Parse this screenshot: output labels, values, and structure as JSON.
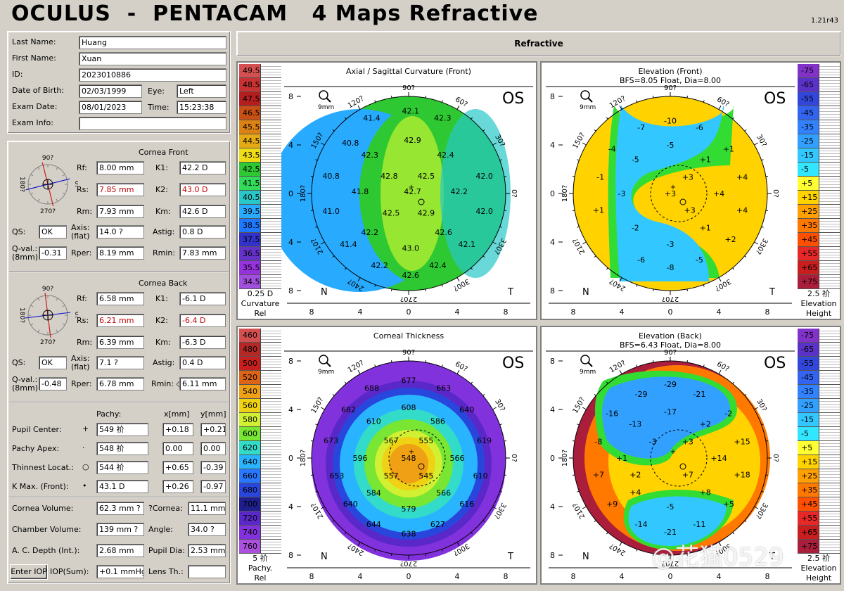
{
  "app": {
    "title": "OCULUS  -  PENTACAM   4 Maps Refractive",
    "version": "1.21r43"
  },
  "patient": {
    "last_name_label": "Last Name:",
    "last_name": "Huang",
    "first_name_label": "First Name:",
    "first_name": "Xuan",
    "id_label": "ID:",
    "id": "2023010886",
    "dob_label": "Date of Birth:",
    "dob": "02/03/1999",
    "eye_label": "Eye:",
    "eye": "Left",
    "exam_date_label": "Exam Date:",
    "exam_date": "08/01/2023",
    "time_label": "Time:",
    "time": "15:23:38",
    "exam_info_label": "Exam Info:",
    "exam_info": ""
  },
  "front": {
    "heading": "Cornea Front",
    "rf_label": "Rf:",
    "rf": "8.00 mm",
    "k1_label": "K1:",
    "k1": "42.2 D",
    "rs_label": "Rs:",
    "rs": "7.85 mm",
    "k2_label": "K2:",
    "k2": "43.0 D",
    "rm_label": "Rm:",
    "rm": "7.93 mm",
    "km_label": "Km:",
    "km": "42.6 D",
    "qs_label": "QS:",
    "qs": "OK",
    "axis_label": "Axis:",
    "axis_sub": "(flat)",
    "axis": "14.0 ?",
    "astig_label": "Astig:",
    "astig": "0.8 D",
    "qval_label": "Q-val.:",
    "qval_sub": "(8mm)",
    "qval": "-0.31",
    "rper_label": "Rper:",
    "rper": "8.19 mm",
    "rmin_label": "Rmin:",
    "rmin": "7.83 mm",
    "axis_angle": 14
  },
  "back": {
    "heading": "Cornea Back",
    "rf_label": "Rf:",
    "rf": "6.58 mm",
    "k1_label": "K1:",
    "k1": "-6.1 D",
    "rs_label": "Rs:",
    "rs": "6.21 mm",
    "k2_label": "K2:",
    "k2": "-6.4 D",
    "rm_label": "Rm:",
    "rm": "6.39 mm",
    "km_label": "Km:",
    "km": "-6.3 D",
    "qs_label": "QS:",
    "qs": "OK",
    "axis_label": "Axis:",
    "axis_sub": "(flat)",
    "axis": "7.1 ?",
    "astig_label": "Astig:",
    "astig": "0.4 D",
    "qval_label": "Q-val.:",
    "qval_sub": "(8mm)",
    "qval": "-0.48",
    "rper_label": "Rper:",
    "rper": "6.78 mm",
    "rmin_label": "Rmin: ◇",
    "rmin": "6.11 mm",
    "axis_angle": 7.1
  },
  "compass": {
    "top": "90?",
    "bottom": "270?",
    "left": "180?",
    "right": "0?"
  },
  "pachy_table": {
    "col_pachy": "Pachy:",
    "col_x": "x[mm]",
    "col_y": "y[mm]",
    "rows": [
      {
        "label": "Pupil Center:",
        "sym": "+",
        "pachy": "549 祄",
        "x": "+0.18",
        "y": "+0.21"
      },
      {
        "label": "Pachy Apex:",
        "sym": "·",
        "pachy": "548 祄",
        "x": "0.00",
        "y": "0.00"
      },
      {
        "label": "Thinnest Locat.:",
        "sym": "○",
        "pachy": "544 祄",
        "x": "+0.65",
        "y": "-0.39"
      },
      {
        "label": "K Max. (Front):",
        "sym": "•",
        "pachy": "43.1 D",
        "x": "+0.26",
        "y": "-0.97"
      }
    ]
  },
  "volume": {
    "cornea_vol_label": "Cornea Volume:",
    "cornea_vol": "62.3 mm ?",
    "qcornea_label": "?Cornea:",
    "qcornea": "11.1 mm",
    "chamber_vol_label": "Chamber Volume:",
    "chamber_vol": "139 mm ?",
    "angle_label": "Angle:",
    "angle": "34.0 ?",
    "acd_label": "A. C. Depth (Int.):",
    "acd": "2.68 mm",
    "pupil_dia_label": "Pupil Dia:",
    "pupil_dia": "2.53 mm",
    "enter_iop": "Enter IOP",
    "iop_label": "IOP(Sum):",
    "iop": "+0.1 mmHg",
    "lens_label": "Lens Th.:",
    "lens": ""
  },
  "header_bar": {
    "label": "Refractive"
  },
  "map_common": {
    "os": "OS",
    "nasal": "N",
    "temporal": "T",
    "zoom_label": "9mm",
    "deg_labels": [
      "90?",
      "60?",
      "30?",
      "0?",
      "330?",
      "300?",
      "270?",
      "240?",
      "210?",
      "180?",
      "150?",
      "120?"
    ],
    "axis_ticks": [
      "8",
      "4",
      "0",
      "4",
      "8"
    ]
  },
  "map_tl": {
    "title": "Axial / Sagittal Curvature (Front)",
    "subtitle": "",
    "scale": [
      "49.5",
      "48.5",
      "47.5",
      "46.5",
      "45.5",
      "44.5",
      "43.5",
      "42.5",
      "41.5",
      "40.5",
      "39.5",
      "38.5",
      "37.5",
      "36.5",
      "35.5",
      "34.5"
    ],
    "scale_colors": [
      "#d45050",
      "#c83232",
      "#b41e1e",
      "#c85014",
      "#dc8214",
      "#e6aa14",
      "#f0dc14",
      "#2ec832",
      "#32dc5a",
      "#28c8c8",
      "#28aaff",
      "#1e78ff",
      "#3232c8",
      "#6432c8",
      "#9632dc",
      "#a050dc"
    ],
    "foot1": "0.25 D",
    "foot2": "Curvature",
    "foot3": "Rel",
    "values": [
      [
        "42.1",
        0.02,
        -0.85
      ],
      [
        "42.3",
        0.35,
        -0.78
      ],
      [
        "41.4",
        -0.38,
        -0.78
      ],
      [
        "42.9",
        0.04,
        -0.55
      ],
      [
        "40.8",
        -0.6,
        -0.52
      ],
      [
        "42.3",
        -0.4,
        -0.4
      ],
      [
        "42.4",
        0.38,
        -0.4
      ],
      [
        "40.8",
        -0.8,
        -0.18
      ],
      [
        "42.8",
        -0.2,
        -0.18
      ],
      [
        "42.5",
        0.18,
        -0.18
      ],
      [
        "42.0",
        0.78,
        -0.18
      ],
      [
        "41.8",
        -0.5,
        -0.02
      ],
      [
        "42.7",
        0.04,
        -0.02
      ],
      [
        "42.2",
        0.52,
        -0.02
      ],
      [
        "41.0",
        -0.8,
        0.18
      ],
      [
        "42.5",
        -0.18,
        0.2
      ],
      [
        "42.9",
        0.18,
        0.2
      ],
      [
        "42.0",
        0.78,
        0.18
      ],
      [
        "42.2",
        -0.4,
        0.4
      ],
      [
        "42.6",
        0.36,
        0.4
      ],
      [
        "41.4",
        -0.62,
        0.52
      ],
      [
        "43.0",
        0.02,
        0.56
      ],
      [
        "42.1",
        0.6,
        0.52
      ],
      [
        "42.2",
        -0.3,
        0.74
      ],
      [
        "42.4",
        0.3,
        0.74
      ],
      [
        "42.6",
        0.02,
        0.84
      ]
    ]
  },
  "map_tr": {
    "title": "Elevation (Front)",
    "subtitle": "BFS=8.05 Float, Dia=8.00",
    "scale": [
      "-75",
      "-65",
      "-55",
      "-45",
      "-35",
      "-25",
      "-15",
      "-5",
      "+5",
      "+15",
      "+25",
      "+35",
      "+45",
      "+55",
      "+65",
      "+75"
    ],
    "scale_colors": [
      "#8232c8",
      "#5a32c8",
      "#3246dc",
      "#3264f0",
      "#3282ff",
      "#32a0ff",
      "#32c8ff",
      "#32e6ff",
      "#ffff32",
      "#ffd200",
      "#ffa000",
      "#ff7800",
      "#ff5000",
      "#e62828",
      "#c81e1e",
      "#aa1e3c"
    ],
    "foot1": "2.5 祄",
    "foot2": "Elevation",
    "foot3": "Height",
    "values": [
      [
        "-10",
        0.0,
        -0.75
      ],
      [
        "-7",
        -0.3,
        -0.68
      ],
      [
        "-6",
        0.3,
        -0.68
      ],
      [
        "-4",
        -0.6,
        -0.46
      ],
      [
        "-5",
        0.0,
        -0.5
      ],
      [
        "+1",
        0.6,
        -0.46
      ],
      [
        "-5",
        -0.36,
        -0.35
      ],
      [
        "+1",
        0.36,
        -0.35
      ],
      [
        "-1",
        -0.72,
        -0.17
      ],
      [
        "+3",
        0.18,
        -0.17
      ],
      [
        "+4",
        0.74,
        -0.17
      ],
      [
        "-3",
        -0.5,
        0.0
      ],
      [
        "+3",
        0.0,
        0.0
      ],
      [
        "+4",
        0.5,
        0.0
      ],
      [
        "+1",
        -0.74,
        0.17
      ],
      [
        "+3",
        0.2,
        0.17
      ],
      [
        "+4",
        0.74,
        0.17
      ],
      [
        "-2",
        -0.36,
        0.35
      ],
      [
        "+1",
        0.36,
        0.35
      ],
      [
        "-3",
        0.0,
        0.52
      ],
      [
        "+2",
        0.62,
        0.47
      ],
      [
        "-6",
        -0.3,
        0.68
      ],
      [
        "-8",
        0.0,
        0.76
      ],
      [
        "-5",
        0.3,
        0.68
      ]
    ]
  },
  "map_bl": {
    "title": "Corneal Thickness",
    "subtitle": "",
    "scale": [
      "460",
      "480",
      "500",
      "520",
      "540",
      "560",
      "580",
      "600",
      "620",
      "640",
      "660",
      "680",
      "700",
      "720",
      "740",
      "760"
    ],
    "scale_colors": [
      "#d45050",
      "#b42828",
      "#c81e1e",
      "#dc6414",
      "#f0a014",
      "#f0d214",
      "#d2f032",
      "#78e632",
      "#32dcc8",
      "#28b4ff",
      "#2878ff",
      "#2846dc",
      "#1e1e8c",
      "#5a28c8",
      "#8232dc",
      "#aa50dc"
    ],
    "foot1": "5 祄",
    "foot2": "Pachy.",
    "foot3": "Rel",
    "values": [
      [
        "677",
        0.0,
        -0.8
      ],
      [
        "688",
        -0.38,
        -0.72
      ],
      [
        "663",
        0.36,
        -0.72
      ],
      [
        "608",
        0.0,
        -0.52
      ],
      [
        "682",
        -0.62,
        -0.5
      ],
      [
        "640",
        0.6,
        -0.5
      ],
      [
        "610",
        -0.36,
        -0.38
      ],
      [
        "586",
        0.3,
        -0.38
      ],
      [
        "673",
        -0.8,
        -0.18
      ],
      [
        "567",
        -0.18,
        -0.18
      ],
      [
        "555",
        0.18,
        -0.18
      ],
      [
        "619",
        0.78,
        -0.18
      ],
      [
        "596",
        -0.5,
        0.0
      ],
      [
        "548",
        0.0,
        0.0
      ],
      [
        "566",
        0.5,
        0.0
      ],
      [
        "653",
        -0.74,
        0.18
      ],
      [
        "557",
        -0.18,
        0.18
      ],
      [
        "545",
        0.18,
        0.18
      ],
      [
        "610",
        0.74,
        0.18
      ],
      [
        "584",
        -0.36,
        0.36
      ],
      [
        "566",
        0.36,
        0.36
      ],
      [
        "640",
        -0.6,
        0.47
      ],
      [
        "616",
        0.6,
        0.47
      ],
      [
        "579",
        0.0,
        0.52
      ],
      [
        "644",
        -0.36,
        0.68
      ],
      [
        "627",
        0.3,
        0.68
      ],
      [
        "638",
        0.0,
        0.78
      ]
    ]
  },
  "map_br": {
    "title": "Elevation (Back)",
    "subtitle": "BFS=6.43 Float, Dia=8.00",
    "scale": [
      "-75",
      "-65",
      "-55",
      "-45",
      "-35",
      "-25",
      "-15",
      "-5",
      "+5",
      "+15",
      "+25",
      "+35",
      "+45",
      "+55",
      "+65",
      "+75"
    ],
    "scale_colors": [
      "#8232c8",
      "#5a32c8",
      "#3246dc",
      "#3264f0",
      "#3282ff",
      "#32a0ff",
      "#32c8ff",
      "#32e6ff",
      "#ffff32",
      "#ffd200",
      "#ffa000",
      "#ff7800",
      "#ff5000",
      "#e62828",
      "#c81e1e",
      "#aa1e3c"
    ],
    "foot1": "2.5 祄",
    "foot2": "Elevation",
    "foot3": "Height",
    "values": [
      [
        "-29",
        0.0,
        -0.76
      ],
      [
        "-29",
        -0.3,
        -0.66
      ],
      [
        "-21",
        0.3,
        -0.66
      ],
      [
        "-16",
        -0.6,
        -0.46
      ],
      [
        "-17",
        0.0,
        -0.48
      ],
      [
        "-2",
        0.6,
        -0.46
      ],
      [
        "-13",
        -0.36,
        -0.35
      ],
      [
        "+2",
        0.36,
        -0.35
      ],
      [
        "-8",
        -0.74,
        -0.17
      ],
      [
        "-3",
        -0.18,
        -0.17
      ],
      [
        "+3",
        0.18,
        -0.17
      ],
      [
        "+15",
        0.74,
        -0.17
      ],
      [
        "+1",
        -0.5,
        0.0
      ],
      [
        "+14",
        0.5,
        0.0
      ],
      [
        "+7",
        -0.74,
        0.17
      ],
      [
        "+2",
        -0.36,
        0.17
      ],
      [
        "+7",
        0.18,
        0.17
      ],
      [
        "+18",
        0.74,
        0.17
      ],
      [
        "+4",
        -0.36,
        0.35
      ],
      [
        "+8",
        0.36,
        0.35
      ],
      [
        "+9",
        -0.6,
        0.47
      ],
      [
        "-5",
        0.0,
        0.5
      ],
      [
        "+5",
        0.6,
        0.47
      ],
      [
        "-14",
        -0.3,
        0.68
      ],
      [
        "-11",
        0.3,
        0.68
      ],
      [
        "-21",
        0.0,
        0.76
      ]
    ]
  },
  "watermark": "@花猫0529"
}
